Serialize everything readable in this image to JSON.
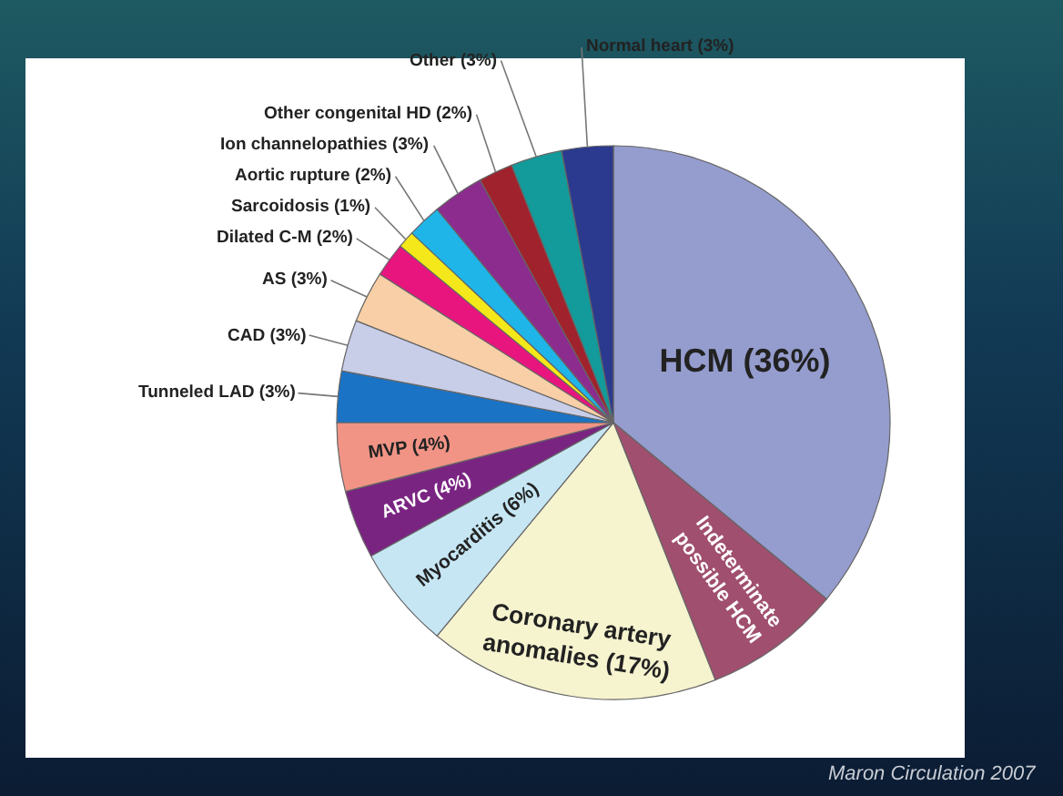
{
  "chart_data": {
    "type": "pie",
    "categories": [
      "HCM (36%)",
      "Indeterminate possible HCM",
      "Coronary artery anomalies (17%)",
      "Myocarditis (6%)",
      "ARVC (4%)",
      "MVP (4%)",
      "Tunneled LAD (3%)",
      "CAD (3%)",
      "AS (3%)",
      "Dilated C-M (2%)",
      "Sarcoidosis (1%)",
      "Aortic rupture (2%)",
      "Ion channelopathies (3%)",
      "Other congenital HD (2%)",
      "Other (3%)",
      "Normal heart (3%)"
    ],
    "values": [
      36,
      8,
      17,
      6,
      4,
      4,
      3,
      3,
      3,
      2,
      1,
      2,
      3,
      2,
      3,
      3
    ],
    "colors": [
      "#959dce",
      "#a04f6e",
      "#f6f3cf",
      "#c6e6f3",
      "#7a2482",
      "#f19486",
      "#1a73c4",
      "#c8cde8",
      "#f8cfa7",
      "#e8157f",
      "#f5e81a",
      "#1fb5e8",
      "#8b2c8e",
      "#a0222d",
      "#139a9a",
      "#2b3a8e"
    ],
    "legend": false,
    "annotations": [
      "Maron Circulation 2007"
    ]
  }
}
